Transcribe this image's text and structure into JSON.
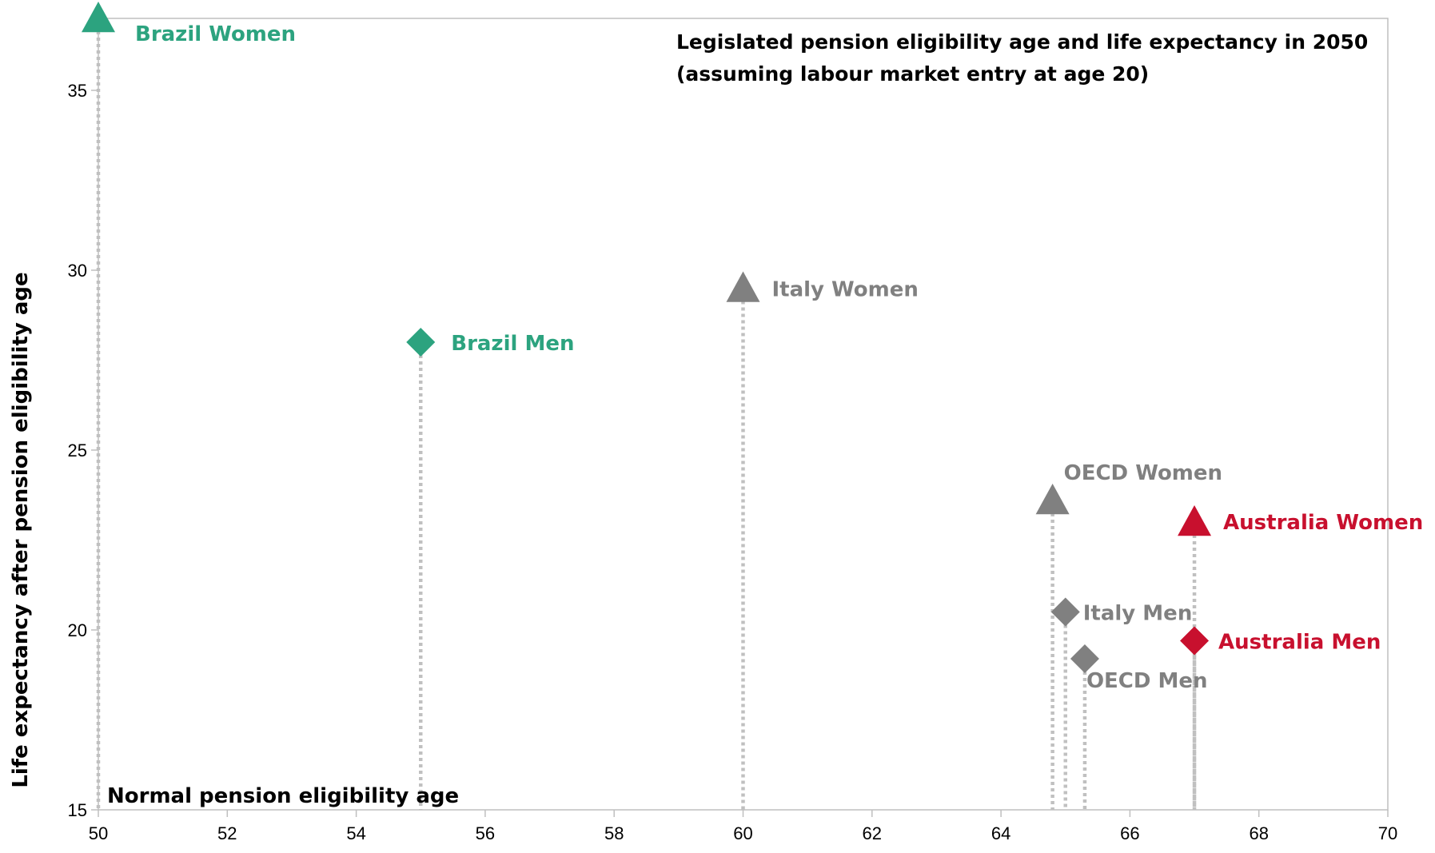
{
  "chart_data": {
    "type": "scatter",
    "title_lines": [
      "Legislated pension eligibility age and life expectancy in 2050",
      "(assuming labour market entry at age 20)"
    ],
    "xlabel": "Normal pension eligibility age",
    "ylabel": "Life expectancy after pension eligibility age",
    "xlim": [
      50,
      70
    ],
    "ylim": [
      15,
      37
    ],
    "xticks": [
      "50",
      "52",
      "54",
      "56",
      "58",
      "60",
      "62",
      "64",
      "66",
      "68",
      "70"
    ],
    "yticks": [
      "15",
      "20",
      "25",
      "30",
      "35"
    ],
    "grid": false,
    "colors": {
      "brazil": "#2ca37f",
      "italy": "#808080",
      "oecd": "#808080",
      "australia": "#c8102e",
      "dropline": "#c0c0c0"
    },
    "points": [
      {
        "label": "Brazil Women",
        "x": 50.0,
        "y": 37.0,
        "marker": "triangle",
        "color": "#2ca37f"
      },
      {
        "label": "Brazil Men",
        "x": 55.0,
        "y": 28.0,
        "marker": "diamond",
        "color": "#2ca37f"
      },
      {
        "label": "Italy Women",
        "x": 60.0,
        "y": 29.5,
        "marker": "triangle",
        "color": "#808080"
      },
      {
        "label": "OECD Women",
        "x": 64.8,
        "y": 23.6,
        "marker": "triangle",
        "color": "#808080"
      },
      {
        "label": "Australia Women",
        "x": 67.0,
        "y": 23.0,
        "marker": "triangle",
        "color": "#c8102e"
      },
      {
        "label": "Italy Men",
        "x": 65.0,
        "y": 20.5,
        "marker": "diamond",
        "color": "#808080"
      },
      {
        "label": "Australia Men",
        "x": 67.0,
        "y": 19.7,
        "marker": "diamond",
        "color": "#c8102e"
      },
      {
        "label": "OECD Men",
        "x": 65.3,
        "y": 19.2,
        "marker": "diamond",
        "color": "#808080"
      }
    ]
  }
}
